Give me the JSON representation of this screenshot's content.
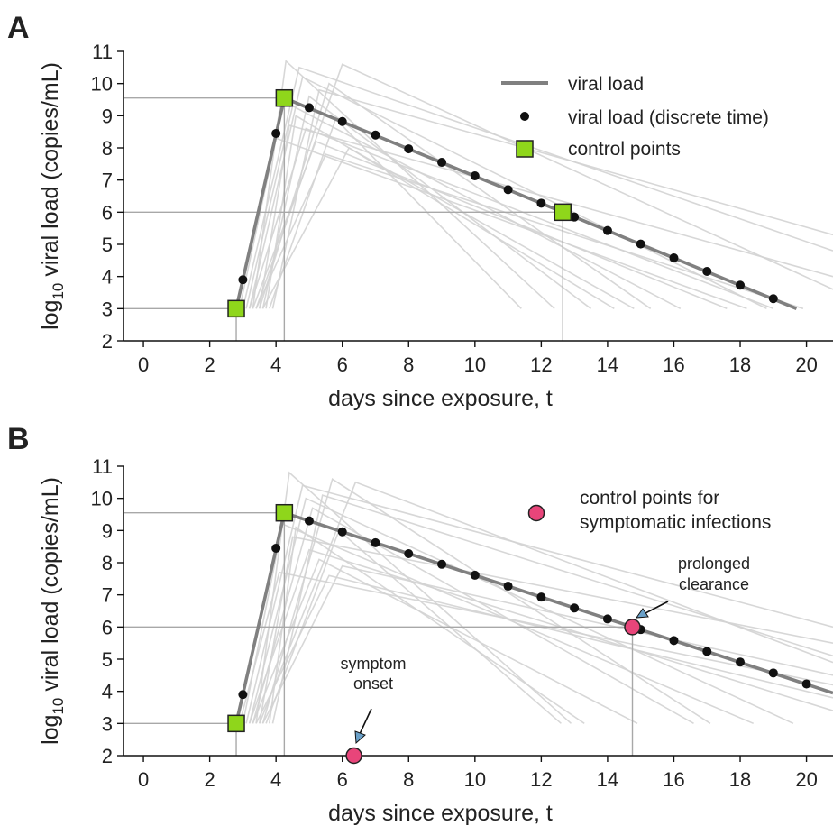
{
  "figure": {
    "panels": [
      {
        "letter": "A",
        "legend": {
          "items": [
            {
              "icon": "line-swatch",
              "label": "viral load"
            },
            {
              "icon": "dot-swatch",
              "label": "viral load (discrete time)"
            },
            {
              "icon": "square-swatch",
              "label": "control points"
            }
          ]
        }
      },
      {
        "letter": "B",
        "legend": {
          "items": [
            {
              "icon": "circle-swatch",
              "label": "control points for",
              "label2": "symptomatic infections"
            }
          ]
        },
        "annotations": [
          {
            "line1": "symptom",
            "line2": "onset"
          },
          {
            "line1": "prolonged",
            "line2": "clearance"
          }
        ]
      }
    ]
  },
  "colors": {
    "square": "#8fd61b",
    "circle": "#e8457a",
    "main_line": "#808080",
    "background_lines": "#d3d3d3",
    "ref_lines": "#a8a8a8",
    "annot_arrow": "#6aa0c8"
  },
  "chart_data": [
    {
      "type": "line",
      "xlabel": "days since exposure, t",
      "ylabel_main": "log",
      "ylabel_sub": "10",
      "ylabel_rest": " viral load (copies/mL)",
      "xlim": [
        -0.6,
        20.8
      ],
      "ylim": [
        2,
        11
      ],
      "xticks": [
        0,
        2,
        4,
        6,
        8,
        10,
        12,
        14,
        16,
        18,
        20
      ],
      "yticks": [
        2,
        3,
        4,
        5,
        6,
        7,
        8,
        9,
        10,
        11
      ],
      "series": [
        {
          "kind": "viral-load",
          "x": [
            2.8,
            4.25,
            12.65,
            19.7
          ],
          "y": [
            3.0,
            9.55,
            6.0,
            3.0
          ]
        },
        {
          "kind": "discrete",
          "x": [
            3,
            4,
            5,
            6,
            7,
            8,
            9,
            10,
            11,
            12,
            13,
            14,
            15,
            16,
            17,
            18,
            19
          ],
          "y": [
            3.9,
            8.45,
            9.25,
            8.82,
            8.4,
            7.97,
            7.55,
            7.13,
            6.7,
            6.28,
            5.85,
            5.43,
            5.01,
            4.58,
            4.16,
            3.73,
            3.31
          ]
        },
        {
          "kind": "control-points",
          "x": [
            2.8,
            4.25,
            12.65
          ],
          "y": [
            3.0,
            9.55,
            6.0
          ]
        }
      ],
      "background_trajectories": [
        [
          [
            3.3,
            3.0
          ],
          [
            4.3,
            10.7
          ],
          [
            12.4,
            3.0
          ]
        ],
        [
          [
            3.0,
            3.0
          ],
          [
            4.7,
            10.5
          ],
          [
            20.8,
            4.8
          ]
        ],
        [
          [
            3.5,
            3.0
          ],
          [
            5.6,
            10.0
          ],
          [
            15.3,
            3.0
          ]
        ],
        [
          [
            3.7,
            3.0
          ],
          [
            4.6,
            9.0
          ],
          [
            14.2,
            3.0
          ]
        ],
        [
          [
            2.9,
            3.0
          ],
          [
            4.0,
            8.3
          ],
          [
            18.2,
            3.0
          ]
        ],
        [
          [
            3.4,
            3.0
          ],
          [
            6.0,
            10.6
          ],
          [
            20.8,
            3.6
          ]
        ],
        [
          [
            3.6,
            3.0
          ],
          [
            5.0,
            9.6
          ],
          [
            13.5,
            3.0
          ]
        ],
        [
          [
            3.2,
            3.0
          ],
          [
            4.9,
            8.6
          ],
          [
            19.0,
            3.0
          ]
        ],
        [
          [
            3.8,
            3.0
          ],
          [
            5.8,
            8.9
          ],
          [
            11.4,
            3.0
          ]
        ],
        [
          [
            3.5,
            3.0
          ],
          [
            4.4,
            8.7
          ],
          [
            20.8,
            4.0
          ]
        ],
        [
          [
            3.1,
            3.0
          ],
          [
            4.5,
            9.3
          ],
          [
            16.2,
            3.0
          ]
        ],
        [
          [
            3.9,
            3.0
          ],
          [
            5.3,
            9.8
          ],
          [
            20.8,
            5.3
          ]
        ],
        [
          [
            3.3,
            3.0
          ],
          [
            5.2,
            8.2
          ],
          [
            17.6,
            3.0
          ]
        ],
        [
          [
            3.6,
            3.0
          ],
          [
            6.2,
            8.0
          ],
          [
            14.8,
            3.0
          ]
        ],
        [
          [
            3.2,
            3.0
          ],
          [
            4.8,
            10.2
          ],
          [
            18.8,
            3.0
          ]
        ],
        [
          [
            3.4,
            3.0
          ],
          [
            5.5,
            7.8
          ],
          [
            19.9,
            3.0
          ]
        ]
      ],
      "ref_lines": {
        "y": [
          3.0,
          9.55,
          6.0
        ],
        "x": [
          2.8,
          4.25,
          12.65
        ]
      }
    },
    {
      "type": "line",
      "xlabel": "days since exposure, t",
      "ylabel_main": "log",
      "ylabel_sub": "10",
      "ylabel_rest": " viral load (copies/mL)",
      "xlim": [
        -0.6,
        20.8
      ],
      "ylim": [
        2,
        11
      ],
      "xticks": [
        0,
        2,
        4,
        6,
        8,
        10,
        12,
        14,
        16,
        18,
        20
      ],
      "yticks": [
        2,
        3,
        4,
        5,
        6,
        7,
        8,
        9,
        10,
        11
      ],
      "series": [
        {
          "kind": "viral-load",
          "x": [
            2.8,
            4.25,
            14.75,
            20.8
          ],
          "y": [
            3.0,
            9.55,
            6.0,
            3.95
          ]
        },
        {
          "kind": "discrete",
          "x": [
            3,
            4,
            5,
            6,
            7,
            8,
            9,
            10,
            11,
            12,
            13,
            14,
            15,
            16,
            17,
            18,
            19,
            20
          ],
          "y": [
            3.9,
            8.45,
            9.3,
            8.96,
            8.62,
            8.28,
            7.95,
            7.61,
            7.27,
            6.93,
            6.59,
            6.25,
            5.92,
            5.58,
            5.24,
            4.91,
            4.57,
            4.23
          ]
        },
        {
          "kind": "control-points",
          "x": [
            2.8,
            4.25
          ],
          "y": [
            3.0,
            9.55
          ]
        },
        {
          "kind": "symptom-points",
          "x": [
            6.35,
            14.75
          ],
          "y": [
            2.0,
            6.0
          ]
        }
      ],
      "background_trajectories": [
        [
          [
            3.4,
            3.0
          ],
          [
            4.4,
            10.8
          ],
          [
            12.9,
            3.0
          ]
        ],
        [
          [
            3.1,
            3.0
          ],
          [
            4.8,
            10.4
          ],
          [
            20.8,
            6.0
          ]
        ],
        [
          [
            3.6,
            3.0
          ],
          [
            5.7,
            10.6
          ],
          [
            17.1,
            3.0
          ]
        ],
        [
          [
            3.8,
            3.0
          ],
          [
            4.6,
            9.1
          ],
          [
            13.3,
            3.0
          ]
        ],
        [
          [
            2.9,
            3.0
          ],
          [
            4.1,
            7.7
          ],
          [
            20.8,
            4.2
          ]
        ],
        [
          [
            3.5,
            3.0
          ],
          [
            6.4,
            10.5
          ],
          [
            20.8,
            4.9
          ]
        ],
        [
          [
            3.3,
            3.0
          ],
          [
            5.1,
            9.7
          ],
          [
            16.6,
            3.0
          ]
        ],
        [
          [
            3.2,
            3.0
          ],
          [
            5.0,
            8.4
          ],
          [
            20.8,
            3.4
          ]
        ],
        [
          [
            3.7,
            3.0
          ],
          [
            5.9,
            9.0
          ],
          [
            12.6,
            3.0
          ]
        ],
        [
          [
            3.5,
            3.0
          ],
          [
            4.5,
            8.8
          ],
          [
            20.8,
            5.5
          ]
        ],
        [
          [
            3.0,
            3.0
          ],
          [
            4.2,
            9.2
          ],
          [
            18.4,
            3.0
          ]
        ],
        [
          [
            3.9,
            3.0
          ],
          [
            5.4,
            10.1
          ],
          [
            20.8,
            5.1
          ]
        ],
        [
          [
            3.3,
            3.0
          ],
          [
            5.3,
            8.1
          ],
          [
            14.9,
            3.0
          ]
        ],
        [
          [
            3.6,
            3.0
          ],
          [
            6.0,
            7.9
          ],
          [
            20.8,
            4.5
          ]
        ],
        [
          [
            3.2,
            3.0
          ],
          [
            4.9,
            10.0
          ],
          [
            19.6,
            3.0
          ]
        ],
        [
          [
            3.4,
            3.0
          ],
          [
            5.6,
            7.6
          ],
          [
            20.8,
            3.8
          ]
        ]
      ],
      "ref_lines": {
        "y": [
          3.0,
          9.55,
          6.0
        ],
        "x": [
          2.8,
          4.25,
          14.75
        ]
      }
    }
  ]
}
